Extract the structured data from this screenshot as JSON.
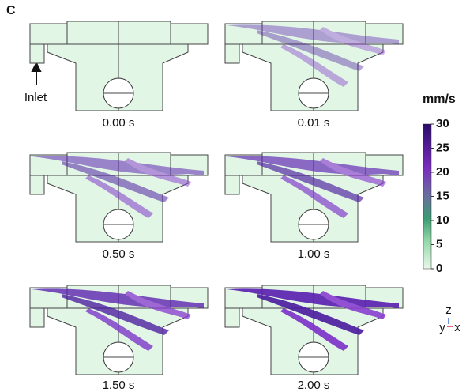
{
  "panel_label": "C",
  "inlet_label": "Inlet",
  "panels": [
    {
      "time": "0.00 s"
    },
    {
      "time": "0.01 s"
    },
    {
      "time": "0.50 s"
    },
    {
      "time": "1.00 s"
    },
    {
      "time": "1.50 s"
    },
    {
      "time": "2.00 s"
    }
  ],
  "colorbar": {
    "unit": "mm/s",
    "range": [
      0,
      30
    ],
    "ticks": [
      0,
      5,
      10,
      15,
      20,
      25,
      30
    ]
  },
  "axes": {
    "z": "z",
    "y": "y",
    "x": "x"
  }
}
